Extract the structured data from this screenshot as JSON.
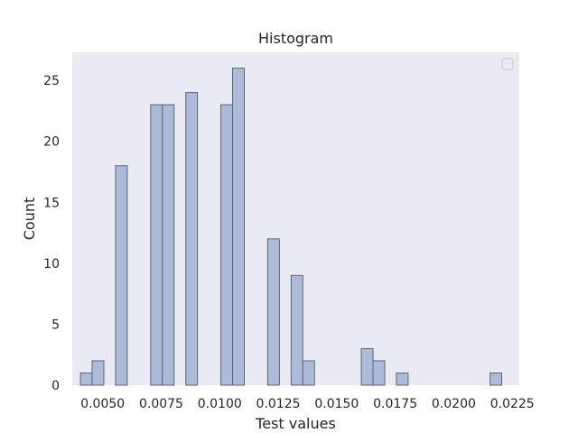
{
  "chart_data": {
    "type": "bar",
    "title": "Histogram",
    "xlabel": "Test values",
    "ylabel": "Count",
    "bin_width": 0.0005,
    "bins": [
      {
        "x": 0.0043,
        "count": 1
      },
      {
        "x": 0.0048,
        "count": 2
      },
      {
        "x": 0.0058,
        "count": 18
      },
      {
        "x": 0.0073,
        "count": 23
      },
      {
        "x": 0.0078,
        "count": 23
      },
      {
        "x": 0.0088,
        "count": 24
      },
      {
        "x": 0.0103,
        "count": 23
      },
      {
        "x": 0.0108,
        "count": 26
      },
      {
        "x": 0.0123,
        "count": 12
      },
      {
        "x": 0.0133,
        "count": 9
      },
      {
        "x": 0.0138,
        "count": 2
      },
      {
        "x": 0.0163,
        "count": 3
      },
      {
        "x": 0.0168,
        "count": 2
      },
      {
        "x": 0.0178,
        "count": 1
      },
      {
        "x": 0.0218,
        "count": 1
      }
    ],
    "xlim": [
      0.0037,
      0.0228
    ],
    "ylim": [
      0,
      27.3
    ],
    "xticks": [
      0.005,
      0.0075,
      0.01,
      0.0125,
      0.015,
      0.0175,
      0.02,
      0.0225
    ],
    "xtick_labels": [
      "0.0050",
      "0.0075",
      "0.0100",
      "0.0125",
      "0.0150",
      "0.0175",
      "0.0200",
      "0.0225"
    ],
    "yticks": [
      0,
      5,
      10,
      15,
      20,
      25
    ],
    "ytick_labels": [
      "0",
      "5",
      "10",
      "15",
      "20",
      "25"
    ],
    "grid": false,
    "legend": "top-right (empty)",
    "colors": {
      "plot_background": "#eaeaf2",
      "bar_fill": "#aebbd8",
      "bar_edge": "#5a6478",
      "text": "#262626"
    }
  }
}
